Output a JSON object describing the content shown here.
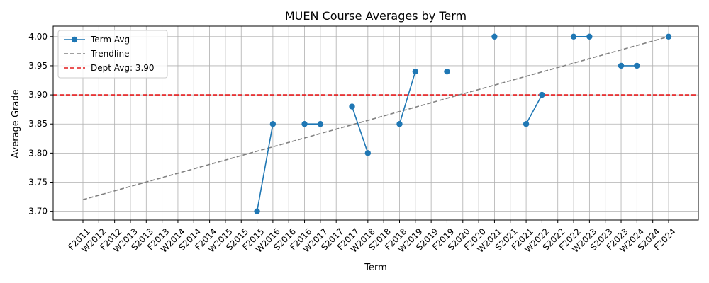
{
  "chart_data": {
    "type": "line",
    "title": "MUEN Course Averages by Term",
    "xlabel": "Term",
    "ylabel": "Average Grade",
    "ylim": [
      3.685,
      4.018
    ],
    "yticks": [
      3.7,
      3.75,
      3.8,
      3.85,
      3.9,
      3.95,
      4.0
    ],
    "grid": true,
    "legend_position": "top-left",
    "categories": [
      "F2011",
      "W2012",
      "F2012",
      "W2013",
      "S2013",
      "F2013",
      "W2014",
      "S2014",
      "F2014",
      "W2015",
      "S2015",
      "F2015",
      "W2016",
      "S2016",
      "F2016",
      "W2017",
      "S2017",
      "F2017",
      "W2018",
      "S2018",
      "F2018",
      "W2019",
      "S2019",
      "F2019",
      "S2020",
      "F2020",
      "W2021",
      "S2021",
      "F2021",
      "W2022",
      "S2022",
      "F2022",
      "W2023",
      "S2023",
      "F2023",
      "W2024",
      "S2024",
      "F2024"
    ],
    "series": [
      {
        "name": "Term Avg",
        "color": "#1f77b4",
        "values": [
          null,
          null,
          null,
          null,
          null,
          null,
          null,
          null,
          null,
          null,
          null,
          3.7,
          3.85,
          null,
          3.85,
          3.85,
          null,
          3.88,
          3.8,
          null,
          3.85,
          3.94,
          null,
          3.94,
          null,
          null,
          4.0,
          null,
          3.85,
          3.9,
          null,
          4.0,
          4.0,
          null,
          3.95,
          3.95,
          null,
          4.0
        ]
      },
      {
        "name": "Trendline",
        "color": "#808080",
        "start": 3.72,
        "end": 4.0
      },
      {
        "name": "Dept Avg: 3.90",
        "color": "#e41a1c",
        "value": 3.9
      }
    ]
  }
}
